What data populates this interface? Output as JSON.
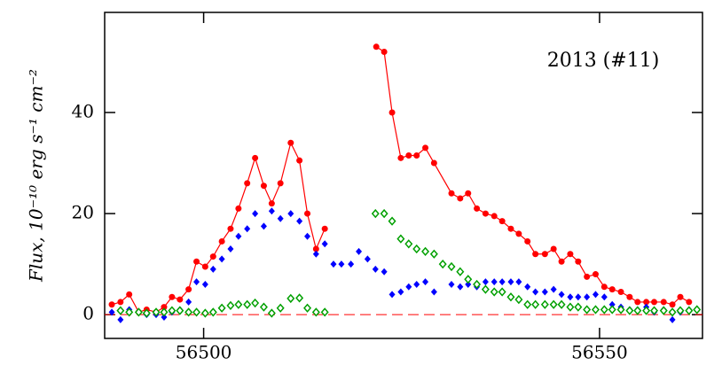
{
  "chart_data": {
    "type": "scatter",
    "annotation": "2013 (#11)",
    "y_label": "Flux,  10⁻¹⁰ erg s⁻¹ cm⁻²",
    "xlim": [
      56487.5,
      56563
    ],
    "ylim": [
      -4.7,
      59.8
    ],
    "xticks": [
      56500,
      56550
    ],
    "yticks": [
      0,
      20,
      40
    ],
    "zero_line": true,
    "series": [
      {
        "color": "#ff0000",
        "marker": "circle",
        "line": true,
        "x": [
          56488.4,
          56489.5,
          56490.6,
          56491.8,
          56492.8,
          56494.0,
          56495.0,
          56496.0,
          56497.0,
          56498.1,
          56499.1,
          56500.2,
          56501.2,
          56502.3,
          56503.4,
          56504.4,
          56505.5,
          56506.5,
          56507.6,
          56508.6,
          56509.7,
          56511.0,
          56512.1,
          56513.1,
          56514.2,
          56515.3,
          56518.5,
          56521.8,
          56522.8,
          56523.8,
          56524.9,
          56525.9,
          56526.9,
          56528.0,
          56529.1,
          56531.3,
          56532.4,
          56533.4,
          56534.5,
          56535.6,
          56536.7,
          56537.7,
          56538.8,
          56539.8,
          56540.9,
          56541.9,
          56543.1,
          56544.2,
          56545.2,
          56546.3,
          56547.3,
          56548.4,
          56549.5,
          56550.6,
          56551.6,
          56552.7,
          56553.8,
          56554.8,
          56555.9,
          56556.9,
          56558.1,
          56559.2,
          56560.2,
          56561.3
        ],
        "values": [
          2,
          2.5,
          4,
          0.5,
          1,
          0.5,
          1.5,
          3.5,
          3,
          5,
          10.5,
          9.5,
          11.5,
          14.5,
          17,
          21,
          26,
          31,
          25.5,
          22,
          26,
          34,
          30.5,
          20,
          13,
          17,
          null,
          53,
          52,
          40,
          31,
          31.5,
          31.5,
          33,
          30,
          24,
          23,
          24,
          21,
          20,
          19.5,
          18.5,
          17,
          16,
          14.5,
          12,
          12,
          13,
          10.5,
          12,
          10.5,
          7.5,
          8,
          5.5,
          5,
          4.5,
          3.5,
          2.5,
          2.5,
          2.5,
          2.5,
          2,
          3.5,
          2.5
        ]
      },
      {
        "color": "#0000ff",
        "marker": "diamond",
        "line": false,
        "x": [
          56488.4,
          56489.5,
          56490.6,
          56491.8,
          56492.8,
          56494.0,
          56495.0,
          56496.0,
          56497.0,
          56498.1,
          56499.1,
          56500.2,
          56501.2,
          56502.3,
          56503.4,
          56504.4,
          56505.5,
          56506.5,
          56507.6,
          56508.6,
          56509.7,
          56511.0,
          56512.1,
          56513.1,
          56514.2,
          56515.3,
          56516.4,
          56517.4,
          56518.6,
          56519.6,
          56520.7,
          56521.7,
          56522.8,
          56523.8,
          56524.9,
          56525.9,
          56526.9,
          56528.0,
          56529.1,
          56531.3,
          56532.4,
          56533.4,
          56534.5,
          56535.6,
          56536.7,
          56537.7,
          56538.8,
          56539.8,
          56540.9,
          56541.9,
          56543.1,
          56544.2,
          56545.2,
          56546.3,
          56547.3,
          56548.4,
          56549.5,
          56550.6,
          56551.6,
          56552.7,
          56553.8,
          56554.8,
          56555.9,
          56556.9,
          56558.1,
          56559.2,
          56560.2,
          56561.3
        ],
        "values": [
          0.5,
          -1,
          1,
          0.5,
          0,
          0,
          -0.5,
          0.5,
          1,
          2.5,
          6.5,
          6,
          9,
          11,
          13,
          15.5,
          17,
          20,
          17.5,
          20.5,
          19,
          20,
          18.5,
          15.5,
          12,
          14,
          10,
          10,
          10,
          12.5,
          11,
          9,
          8.5,
          4,
          4.5,
          5.5,
          6,
          6.5,
          4.5,
          6,
          5.5,
          6,
          5.5,
          6.5,
          6.5,
          6.5,
          6.5,
          6.5,
          5.5,
          4.5,
          4.5,
          5,
          4,
          3.5,
          3.5,
          3.5,
          4,
          3.5,
          2,
          1.5,
          1,
          1,
          1.5,
          0.5,
          1,
          -1,
          0.5,
          1
        ]
      },
      {
        "color": "#00a000",
        "marker": "open-diamond",
        "line": false,
        "x": [
          56489.5,
          56490.6,
          56491.8,
          56492.8,
          56494.0,
          56495.0,
          56496.0,
          56497.0,
          56498.1,
          56499.1,
          56500.2,
          56501.2,
          56502.3,
          56503.4,
          56504.4,
          56505.5,
          56506.5,
          56507.6,
          56508.6,
          56509.7,
          56511.0,
          56512.1,
          56513.1,
          56514.2,
          56515.3,
          56521.7,
          56522.8,
          56523.8,
          56524.9,
          56525.9,
          56526.9,
          56528.0,
          56529.1,
          56530.2,
          56531.3,
          56532.4,
          56533.4,
          56534.5,
          56535.6,
          56536.7,
          56537.7,
          56538.8,
          56539.8,
          56540.9,
          56541.9,
          56543.1,
          56544.2,
          56545.2,
          56546.3,
          56547.3,
          56548.4,
          56549.5,
          56550.6,
          56551.6,
          56552.7,
          56553.8,
          56554.8,
          56555.9,
          56556.9,
          56558.1,
          56559.2,
          56560.2,
          56561.3,
          56562.3
        ],
        "values": [
          0.8,
          0.5,
          0.5,
          0.3,
          0.5,
          0.5,
          0.8,
          0.8,
          0.5,
          0.5,
          0.3,
          0.5,
          1.3,
          1.8,
          2,
          2,
          2.3,
          1.5,
          0.3,
          1.3,
          3.2,
          3.3,
          1.3,
          0.5,
          0.5,
          20,
          20,
          18.5,
          15,
          14,
          13,
          12.5,
          12,
          10,
          9.5,
          8.5,
          7,
          6,
          5,
          4.5,
          4.5,
          3.5,
          3,
          2,
          2,
          2,
          2,
          2,
          1.5,
          1.5,
          1,
          1,
          1,
          1,
          1,
          0.8,
          0.8,
          0.8,
          0.8,
          0.8,
          0.5,
          0.8,
          0.8,
          1
        ]
      }
    ]
  }
}
